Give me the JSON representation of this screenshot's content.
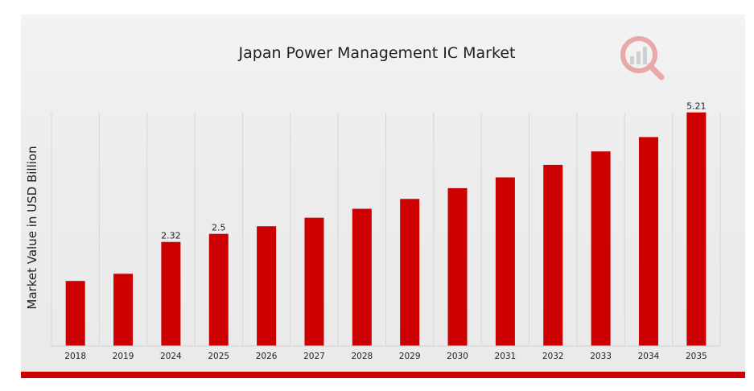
{
  "chart_data": {
    "type": "bar",
    "title": "Japan Power Management IC Market",
    "xlabel": "",
    "ylabel": "Market Value in USD Billion",
    "categories": [
      "2018",
      "2019",
      "2024",
      "2025",
      "2026",
      "2027",
      "2028",
      "2029",
      "2030",
      "2031",
      "2032",
      "2033",
      "2034",
      "2035"
    ],
    "series": [
      {
        "values": [
          1.45,
          1.61,
          2.32,
          2.5,
          2.67,
          2.86,
          3.06,
          3.28,
          3.52,
          3.76,
          4.04,
          4.34,
          4.66,
          5.21
        ],
        "color": "#cc0000"
      }
    ],
    "data_labels": {
      "2024": "2.32",
      "2025": "2.5",
      "2035": "5.21"
    },
    "ylim": [
      0,
      5.6
    ],
    "grid": "vertical",
    "legend": "none"
  },
  "colors": {
    "bar": "#cc0000",
    "accent": "#cc0000"
  },
  "logo_icon": "magnifier-chart-logo-icon"
}
